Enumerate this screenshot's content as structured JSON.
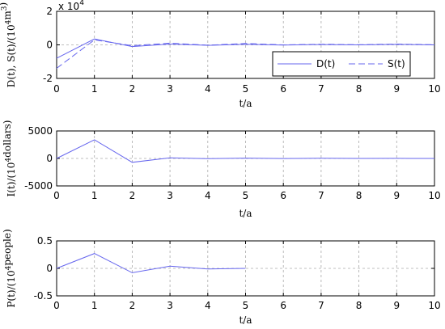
{
  "chart_data": [
    {
      "type": "line",
      "xlabel": "t/a",
      "ylabel_main": "D(t), S(t)/(10",
      "ylabel_sup": "4",
      "ylabel_mid": "m",
      "ylabel_sup2": "3",
      "ylabel_end": ")",
      "exponent_base": "x 10",
      "exponent_power": "4",
      "xlim": [
        0,
        10
      ],
      "ylim": [
        -2,
        2
      ],
      "xticks": [
        "0",
        "1",
        "2",
        "3",
        "4",
        "5",
        "6",
        "7",
        "8",
        "9",
        "10"
      ],
      "yticks": [
        "2",
        "0",
        "-2"
      ],
      "ytick_values": [
        2,
        0,
        -2
      ],
      "grid": true,
      "legend_position": "inside-lower-right",
      "series": [
        {
          "name": "D(t)",
          "style": "solid",
          "color": "#6666ee",
          "x": [
            0,
            1,
            2,
            3,
            4,
            5,
            6,
            7,
            8,
            9,
            10
          ],
          "y": [
            -0.8,
            0.35,
            -0.1,
            0.05,
            -0.03,
            0.04,
            -0.01,
            0.02,
            0.0,
            0.03,
            0.0
          ]
        },
        {
          "name": "S(t)",
          "style": "dashed",
          "color": "#6666ee",
          "x": [
            0,
            1,
            2,
            3,
            4,
            5,
            6,
            7,
            8,
            9,
            10
          ],
          "y": [
            -1.4,
            0.3,
            -0.05,
            0.1,
            -0.02,
            0.08,
            0.0,
            0.04,
            0.01,
            0.05,
            0.01
          ]
        }
      ]
    },
    {
      "type": "line",
      "xlabel": "t/a",
      "ylabel_main": "I(t)/(10",
      "ylabel_sup": "4",
      "ylabel_end": "dollars)",
      "xlim": [
        0,
        10
      ],
      "ylim": [
        -5000,
        5000
      ],
      "xticks": [
        "0",
        "1",
        "2",
        "3",
        "4",
        "5",
        "6",
        "7",
        "8",
        "9",
        "10"
      ],
      "yticks": [
        "5000",
        "0",
        "-5000"
      ],
      "ytick_values": [
        5000,
        0,
        -5000
      ],
      "grid": true,
      "series": [
        {
          "style": "solid",
          "color": "#6666ee",
          "x": [
            0,
            1,
            2,
            3,
            4,
            5,
            6,
            7,
            8,
            9,
            10
          ],
          "y": [
            0,
            3400,
            -700,
            100,
            -40,
            60,
            -10,
            30,
            0,
            20,
            0
          ]
        }
      ]
    },
    {
      "type": "line",
      "xlabel": "t/a",
      "ylabel_main": "P(t)/(10",
      "ylabel_sup": "4",
      "ylabel_end": "people)",
      "xlim": [
        0,
        10
      ],
      "ylim": [
        -0.5,
        0.5
      ],
      "xticks": [
        "0",
        "1",
        "2",
        "3",
        "4",
        "5",
        "6",
        "7",
        "8",
        "9",
        "10"
      ],
      "yticks": [
        "0.5",
        "0",
        "-0.5"
      ],
      "ytick_values": [
        0.5,
        0,
        -0.5
      ],
      "grid": true,
      "series": [
        {
          "style": "solid",
          "color": "#6666ee",
          "x": [
            0,
            1,
            2,
            3,
            4,
            5
          ],
          "y": [
            0,
            0.27,
            -0.08,
            0.04,
            -0.01,
            0.0
          ]
        }
      ]
    }
  ]
}
